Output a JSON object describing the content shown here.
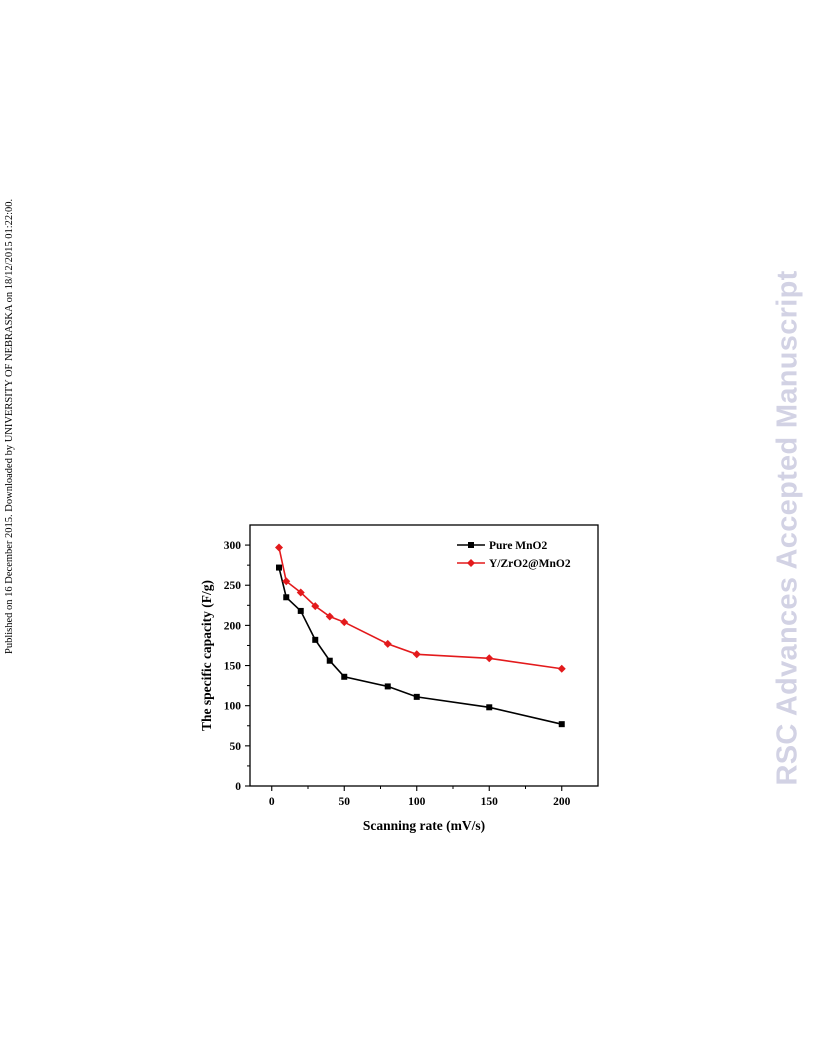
{
  "side_note": "Published on 16 December 2015. Downloaded by UNIVERSITY OF NEBRASKA on 18/12/2015 01:22:00.",
  "watermark": "RSC Advances Accepted Manuscript",
  "chart_data": {
    "type": "line",
    "xlabel": "Scanning rate (mV/s)",
    "ylabel": "The specific capacity (F/g)",
    "xlim": [
      -15,
      225
    ],
    "ylim": [
      0,
      325
    ],
    "x_ticks": [
      0,
      50,
      100,
      150,
      200
    ],
    "x_tick_labels": [
      "0",
      "50",
      "100",
      "150",
      "200"
    ],
    "y_ticks": [
      0,
      50,
      100,
      150,
      200,
      250,
      300
    ],
    "y_tick_labels": [
      "0",
      "50",
      "100",
      "150",
      "200",
      "250",
      "300"
    ],
    "grid": false,
    "legend_position": "top-right",
    "series": [
      {
        "name": "Pure MnO2",
        "color": "#000000",
        "marker": "square",
        "x": [
          5,
          10,
          20,
          30,
          40,
          50,
          80,
          100,
          150,
          200
        ],
        "values": [
          272,
          235,
          218,
          182,
          156,
          136,
          124,
          111,
          98,
          77
        ]
      },
      {
        "name": "Y/ZrO2@MnO2",
        "color": "#e31a1c",
        "marker": "diamond",
        "x": [
          5,
          10,
          20,
          30,
          40,
          50,
          80,
          100,
          150,
          200
        ],
        "values": [
          297,
          255,
          241,
          224,
          211,
          204,
          177,
          164,
          159,
          146
        ]
      }
    ]
  }
}
